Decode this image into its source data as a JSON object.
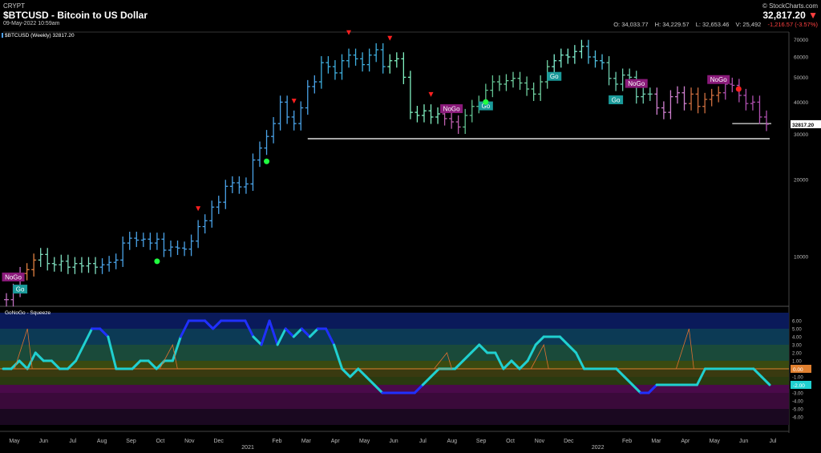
{
  "header": {
    "exchange": "CRYPT",
    "title": "$BTCUSD - Bitcoin to US Dollar",
    "datetime": "09-May-2022 10:59am",
    "source": "© StockCharts.com",
    "last_price": "32,817.20",
    "ohlc": {
      "open": "O: 34,033.77",
      "high": "H: 34,229.57",
      "low": "L: 32,653.46",
      "volume": "V: 25,492",
      "change": "-1,216.57 (-3.57%)"
    }
  },
  "chart_data": [
    {
      "type": "bar",
      "title": "$BTCUSD (Weekly) 32817.20",
      "scale": "log",
      "ylim": [
        6500,
        75000
      ],
      "y_ticks": [
        10000,
        20000,
        30000,
        40000,
        50000,
        60000,
        70000
      ],
      "last_value_label": "32817.20",
      "series": [
        {
          "values": [
            6800,
            7400,
            8600,
            8900,
            9700,
            10200,
            9400,
            9300,
            9600,
            9100,
            9400,
            9200,
            9400,
            9100,
            9300,
            9500,
            9700,
            11300,
            11800,
            11600,
            11700,
            11300,
            11700,
            10600,
            10900,
            10800,
            10700,
            11500,
            13100,
            13800,
            15600,
            16300,
            18800,
            19400,
            18700,
            19200,
            23800,
            26500,
            29400,
            33000,
            40000,
            35000,
            33000,
            38000,
            46000,
            48000,
            57000,
            55000,
            52000,
            58000,
            61000,
            59000,
            56000,
            61000,
            64000,
            55000,
            58000,
            59000,
            50000,
            36500,
            35500,
            37000,
            35000,
            36000,
            34500,
            33500,
            32000,
            35500,
            38500,
            40000,
            44500,
            48000,
            47000,
            48500,
            49500,
            47500,
            45000,
            43000,
            48000,
            55000,
            58000,
            61000,
            60000,
            63000,
            66000,
            60000,
            58000,
            57000,
            49500,
            47000,
            51000,
            50000,
            42000,
            43000,
            43000,
            38000,
            36500,
            42000,
            43500,
            39500,
            43000,
            38500,
            41000,
            42500,
            43500,
            47000,
            46500,
            42500,
            39500,
            40000,
            35000,
            32817
          ]
        }
      ],
      "signals": {
        "labels": [
          "NoGo",
          "Go",
          "NoGo",
          "Go",
          "Go",
          "Go",
          "NoGo",
          "NoGo"
        ],
        "points": [
          {
            "bar": 1,
            "text": "NoGo"
          },
          {
            "bar": 2,
            "text": "Go"
          },
          {
            "bar": 65,
            "text": "NoGo"
          },
          {
            "bar": 70,
            "text": "Go"
          },
          {
            "bar": 80,
            "text": "Go"
          },
          {
            "bar": 89,
            "text": "Go"
          },
          {
            "bar": 92,
            "text": "NoGo"
          },
          {
            "bar": 104,
            "text": "NoGo"
          }
        ]
      },
      "support_lines": [
        {
          "value": 28800
        },
        {
          "value": 33000
        }
      ],
      "x_tick_labels": [
        "May",
        "Jun",
        "Jul",
        "Aug",
        "Sep",
        "Oct",
        "Nov",
        "Dec",
        "2021",
        "Feb",
        "Mar",
        "Apr",
        "May",
        "Jun",
        "Jul",
        "Aug",
        "Sep",
        "Oct",
        "Nov",
        "Dec",
        "2022",
        "Feb",
        "Mar",
        "Apr",
        "May",
        "Jun",
        "Jul"
      ]
    },
    {
      "type": "line",
      "title": "GoNoGo - Squeeze",
      "ylim": [
        -7,
        7
      ],
      "y_ticks": [
        "6.00",
        "5.00",
        "4.00",
        "3.00",
        "2.00",
        "1.00",
        "0.00",
        "-1.00",
        "-2.00",
        "-3.00",
        "-4.00",
        "-5.00",
        "-6.00"
      ],
      "last_value_label": "-2.00",
      "zero_label": "0.00",
      "values": [
        0,
        0,
        1,
        0,
        2,
        1,
        1,
        0,
        0,
        1,
        3,
        5,
        5,
        4,
        0,
        0,
        0,
        1,
        1,
        0,
        1,
        1,
        4,
        6,
        6,
        6,
        5,
        6,
        6,
        6,
        6,
        4,
        3,
        6,
        3,
        5,
        4,
        5,
        4,
        5,
        5,
        3,
        0,
        -1,
        0,
        -1,
        -2,
        -3,
        -3,
        -3,
        -3,
        -3,
        -2,
        -1,
        0,
        0,
        0,
        1,
        2,
        3,
        2,
        2,
        0,
        1,
        0,
        1,
        3,
        4,
        4,
        4,
        3,
        2,
        0,
        0,
        0,
        0,
        0,
        -1,
        -2,
        -3,
        -3,
        -2,
        -2,
        -2,
        -2,
        -2,
        -2,
        0,
        0,
        0,
        0,
        0,
        0,
        0,
        -1,
        -2
      ]
    }
  ]
}
